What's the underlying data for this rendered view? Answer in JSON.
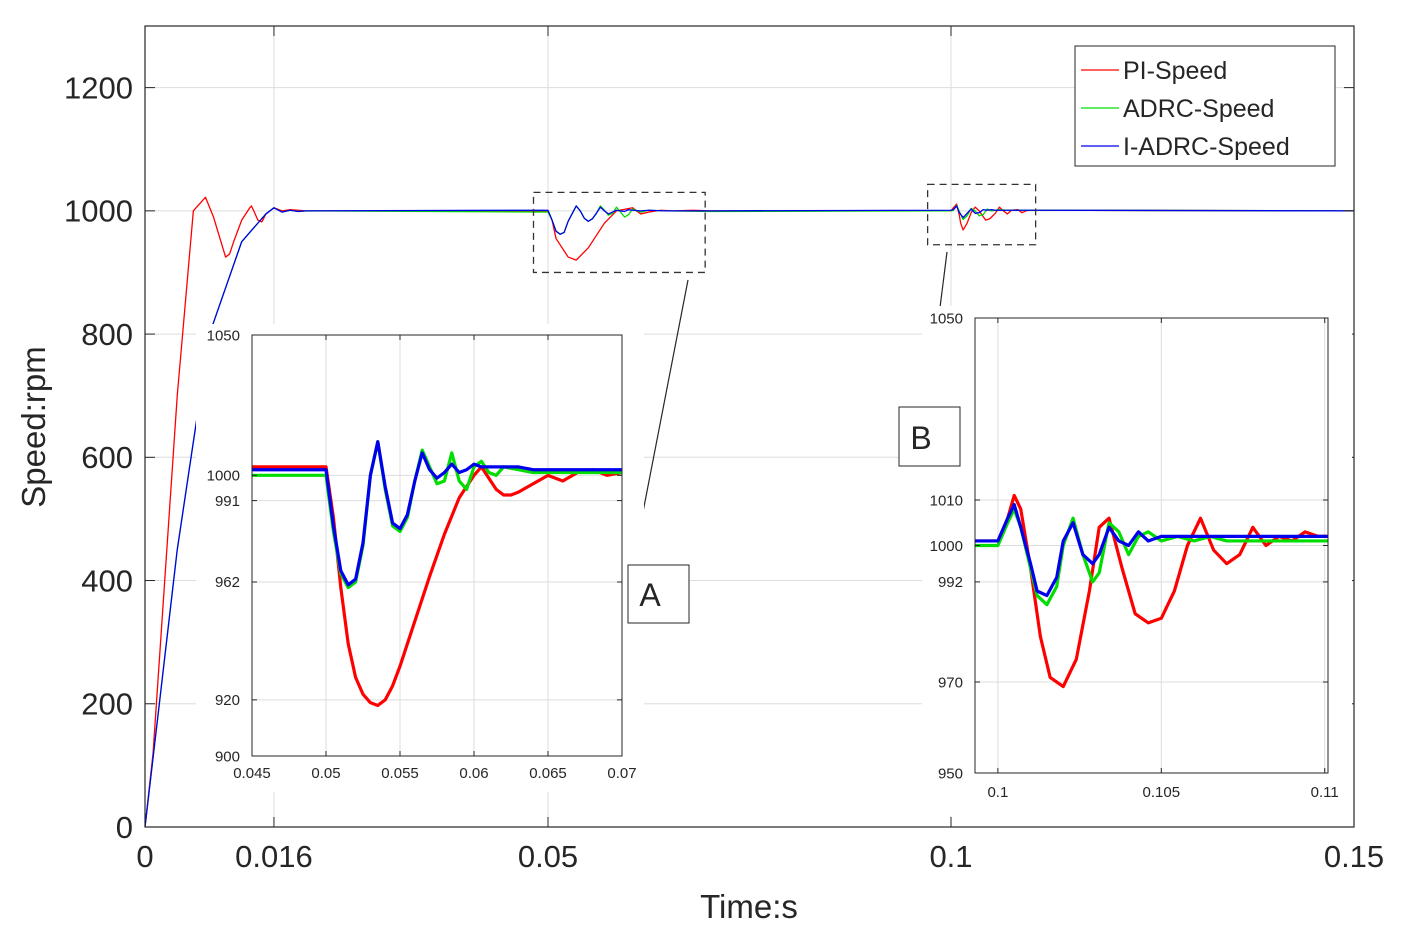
{
  "chart_data": [
    {
      "type": "line",
      "role": "main",
      "xlabel": "Time:s",
      "ylabel": "Speed:rpm",
      "xlim": [
        0,
        0.15
      ],
      "ylim": [
        0,
        1300
      ],
      "xticks": [
        0,
        0.016,
        0.05,
        0.1,
        0.15
      ],
      "xtick_labels": [
        "0",
        "0.016",
        "0.05",
        "0.1",
        "0.15"
      ],
      "yticks": [
        0,
        200,
        400,
        600,
        800,
        1000,
        1200
      ],
      "ytick_labels": [
        "0",
        "200",
        "400",
        "600",
        "800",
        "1000",
        "1200"
      ],
      "legend": {
        "position": "top-right",
        "entries": [
          "PI-Speed",
          "ADRC-Speed",
          "I-ADRC-Speed"
        ]
      },
      "series": [
        {
          "name": "PI-Speed",
          "color": "#ff0000",
          "x": [
            0,
            0.001,
            0.004,
            0.006,
            0.0075,
            0.0085,
            0.01,
            0.0105,
            0.011,
            0.012,
            0.013,
            0.0132,
            0.0135,
            0.014,
            0.0145,
            0.015,
            0.016,
            0.017,
            0.018,
            0.02,
            0.05,
            0.0505,
            0.051,
            0.0525,
            0.0535,
            0.055,
            0.057,
            0.0585,
            0.0605,
            0.0615,
            0.0625,
            0.064,
            0.0655,
            0.068,
            0.07,
            0.1,
            0.1003,
            0.1007,
            0.101,
            0.1012,
            0.1015,
            0.102,
            0.1025,
            0.103,
            0.1035,
            0.1043,
            0.1048,
            0.1055,
            0.106,
            0.1065,
            0.107,
            0.1075,
            0.1083,
            0.1088,
            0.1095,
            0.15
          ],
          "y": [
            0,
            120,
            700,
            1000,
            1022,
            990,
            925,
            930,
            950,
            985,
            1005,
            1008,
            1000,
            985,
            982,
            995,
            1005,
            1000,
            1002,
            1000,
            1000,
            985,
            955,
            925,
            920,
            940,
            980,
            1000,
            1005,
            995,
            998,
            1001,
            1000,
            1001,
            1000,
            1000,
            1005,
            1011,
            995,
            980,
            969,
            980,
            997,
            1006,
            1000,
            985,
            987,
            996,
            1006,
            1000,
            995,
            1001,
            1002,
            997,
            1001,
            1000
          ]
        },
        {
          "name": "ADRC-Speed",
          "color": "#00dd00",
          "x": [
            0,
            0.004,
            0.008,
            0.012,
            0.015,
            0.016,
            0.017,
            0.018,
            0.019,
            0.02,
            0.05,
            0.0505,
            0.051,
            0.0515,
            0.052,
            0.0525,
            0.0535,
            0.054,
            0.0545,
            0.055,
            0.0555,
            0.056,
            0.0565,
            0.057,
            0.0575,
            0.058,
            0.0585,
            0.0595,
            0.06,
            0.0605,
            0.0615,
            0.0625,
            0.0645,
            0.07,
            0.1,
            0.1003,
            0.1007,
            0.101,
            0.1015,
            0.102,
            0.1025,
            0.103,
            0.1035,
            0.104,
            0.1045,
            0.105,
            0.1055,
            0.106,
            0.107,
            0.11,
            0.15
          ],
          "y": [
            0,
            450,
            800,
            950,
            995,
            1005,
            998,
            1001,
            999,
            1000,
            998,
            985,
            967,
            962,
            965,
            983,
            1008,
            1000,
            988,
            983,
            987,
            996,
            1008,
            1001,
            993,
            996,
            1006,
            990,
            994,
            1003,
            998,
            1001,
            1000,
            999,
            1000,
            1001,
            1009,
            1000,
            986,
            992,
            1004,
            1000,
            992,
            994,
            1003,
            1000,
            1001,
            1002,
            1001,
            1001,
            1000
          ]
        },
        {
          "name": "I-ADRC-Speed",
          "color": "#0000ee",
          "x": [
            0,
            0.004,
            0.008,
            0.012,
            0.015,
            0.016,
            0.017,
            0.018,
            0.019,
            0.02,
            0.05,
            0.0505,
            0.051,
            0.0515,
            0.052,
            0.0525,
            0.0535,
            0.054,
            0.0545,
            0.055,
            0.0555,
            0.056,
            0.0565,
            0.057,
            0.0575,
            0.058,
            0.0585,
            0.0595,
            0.06,
            0.0605,
            0.0615,
            0.0625,
            0.0645,
            0.07,
            0.1,
            0.1003,
            0.1007,
            0.101,
            0.1015,
            0.102,
            0.1025,
            0.103,
            0.1035,
            0.104,
            0.1045,
            0.105,
            0.1055,
            0.106,
            0.107,
            0.11,
            0.15
          ],
          "y": [
            0,
            450,
            800,
            950,
            995,
            1005,
            998,
            1001,
            999,
            1000,
            1001,
            985,
            967,
            962,
            965,
            983,
            1008,
            1000,
            988,
            983,
            987,
            996,
            1006,
            1000,
            995,
            998,
            1001,
            999,
            1002,
            1001,
            1000,
            1001,
            1000,
            1000,
            1001,
            1002,
            1008,
            998,
            989,
            996,
            1003,
            996,
            997,
            1002,
            1001,
            1002,
            1001,
            1001,
            1001,
            1001,
            1000
          ]
        }
      ]
    },
    {
      "type": "line",
      "role": "inset",
      "label": "A",
      "xlim": [
        0.045,
        0.07
      ],
      "ylim": [
        900,
        1050
      ],
      "xticks": [
        0.045,
        0.05,
        0.055,
        0.06,
        0.065,
        0.07
      ],
      "xtick_labels": [
        "0.045",
        "0.05",
        "0.055",
        "0.06",
        "0.065",
        "0.07"
      ],
      "yticks": [
        900,
        920,
        962,
        991,
        1000,
        1050
      ],
      "ytick_labels": [
        "900",
        "920",
        "962",
        "991",
        "1000",
        "1050"
      ],
      "series": [
        {
          "name": "PI-Speed",
          "color": "#ff0000",
          "x": [
            0.045,
            0.05,
            0.0505,
            0.051,
            0.0515,
            0.052,
            0.0525,
            0.053,
            0.0535,
            0.054,
            0.0545,
            0.055,
            0.056,
            0.057,
            0.058,
            0.059,
            0.06,
            0.0605,
            0.061,
            0.0615,
            0.062,
            0.0625,
            0.063,
            0.064,
            0.065,
            0.066,
            0.067,
            0.068,
            0.069,
            0.07
          ],
          "y": [
            1003,
            1003,
            985,
            960,
            940,
            928,
            922,
            919,
            918,
            920,
            925,
            932,
            948,
            964,
            979,
            992,
            1000,
            1003,
            999,
            995,
            993,
            993,
            994,
            997,
            1000,
            998,
            1001,
            1002,
            1000,
            1001
          ]
        },
        {
          "name": "ADRC-Speed",
          "color": "#00dd00",
          "x": [
            0.045,
            0.05,
            0.0505,
            0.051,
            0.0515,
            0.052,
            0.0525,
            0.053,
            0.0535,
            0.054,
            0.0545,
            0.055,
            0.0555,
            0.056,
            0.0565,
            0.057,
            0.0575,
            0.058,
            0.0585,
            0.059,
            0.0595,
            0.06,
            0.0605,
            0.061,
            0.0615,
            0.062,
            0.063,
            0.064,
            0.065,
            0.07
          ],
          "y": [
            1000,
            1000,
            980,
            965,
            960,
            962,
            975,
            1000,
            1012,
            995,
            982,
            980,
            985,
            998,
            1009,
            1003,
            997,
            998,
            1008,
            998,
            995,
            1003,
            1005,
            1001,
            1000,
            1003,
            1002,
            1001,
            1001,
            1001
          ]
        },
        {
          "name": "I-ADRC-Speed",
          "color": "#0000ee",
          "x": [
            0.045,
            0.05,
            0.0505,
            0.051,
            0.0515,
            0.052,
            0.0525,
            0.053,
            0.0535,
            0.054,
            0.0545,
            0.055,
            0.0555,
            0.056,
            0.0565,
            0.057,
            0.0575,
            0.058,
            0.0585,
            0.059,
            0.0595,
            0.06,
            0.0605,
            0.061,
            0.062,
            0.063,
            0.064,
            0.065,
            0.07
          ],
          "y": [
            1002,
            1002,
            982,
            966,
            961,
            963,
            976,
            1000,
            1012,
            996,
            983,
            981,
            986,
            998,
            1008,
            1002,
            999,
            1001,
            1004,
            1001,
            1002,
            1004,
            1003,
            1003,
            1003,
            1003,
            1002,
            1002,
            1002
          ]
        }
      ]
    },
    {
      "type": "line",
      "role": "inset",
      "label": "B",
      "xlim": [
        0.0993,
        0.1101
      ],
      "ylim": [
        950,
        1050
      ],
      "xticks": [
        0.1,
        0.105,
        0.11
      ],
      "xtick_labels": [
        "0.1",
        "0.105",
        "0.11"
      ],
      "yticks": [
        950,
        970,
        992,
        1000,
        1010,
        1050
      ],
      "ytick_labels": [
        "950",
        "970",
        "992",
        "1000",
        "1010",
        "1050"
      ],
      "series": [
        {
          "name": "PI-Speed",
          "color": "#ff0000",
          "x": [
            0.0993,
            0.1,
            0.1003,
            0.1005,
            0.1007,
            0.101,
            0.1013,
            0.1016,
            0.102,
            0.1024,
            0.1028,
            0.1031,
            0.1034,
            0.1038,
            0.1042,
            0.1046,
            0.105,
            0.1054,
            0.1058,
            0.1062,
            0.1066,
            0.107,
            0.1074,
            0.1078,
            0.1082,
            0.1086,
            0.109,
            0.1094,
            0.1098,
            0.1101
          ],
          "y": [
            1001,
            1001,
            1006,
            1011,
            1008,
            995,
            980,
            971,
            969,
            975,
            990,
            1004,
            1006,
            995,
            985,
            983,
            984,
            990,
            1000,
            1006,
            999,
            996,
            998,
            1004,
            1000,
            1002,
            1001,
            1003,
            1002,
            1002
          ]
        },
        {
          "name": "ADRC-Speed",
          "color": "#00dd00",
          "x": [
            0.0993,
            0.1,
            0.1003,
            0.1005,
            0.1007,
            0.101,
            0.1012,
            0.1015,
            0.1018,
            0.102,
            0.1023,
            0.1026,
            0.1029,
            0.1031,
            0.1034,
            0.1037,
            0.104,
            0.1043,
            0.1046,
            0.105,
            0.1055,
            0.106,
            0.1065,
            0.107,
            0.108,
            0.1101
          ],
          "y": [
            1000,
            1000,
            1005,
            1008,
            1004,
            995,
            989,
            987,
            991,
            1000,
            1006,
            998,
            992,
            994,
            1005,
            1003,
            998,
            1002,
            1003,
            1001,
            1002,
            1001,
            1002,
            1001,
            1001,
            1001
          ]
        },
        {
          "name": "I-ADRC-Speed",
          "color": "#0000ee",
          "x": [
            0.0993,
            0.1,
            0.1003,
            0.1005,
            0.1007,
            0.101,
            0.1012,
            0.1015,
            0.1018,
            0.102,
            0.1023,
            0.1026,
            0.1029,
            0.1031,
            0.1034,
            0.1037,
            0.104,
            0.1043,
            0.1046,
            0.105,
            0.1055,
            0.106,
            0.1065,
            0.107,
            0.108,
            0.1101
          ],
          "y": [
            1001,
            1001,
            1006,
            1009,
            1004,
            996,
            990,
            989,
            993,
            1001,
            1005,
            998,
            996,
            998,
            1004,
            1001,
            1000,
            1003,
            1001,
            1002,
            1002,
            1002,
            1002,
            1002,
            1002,
            1002
          ]
        }
      ]
    }
  ]
}
